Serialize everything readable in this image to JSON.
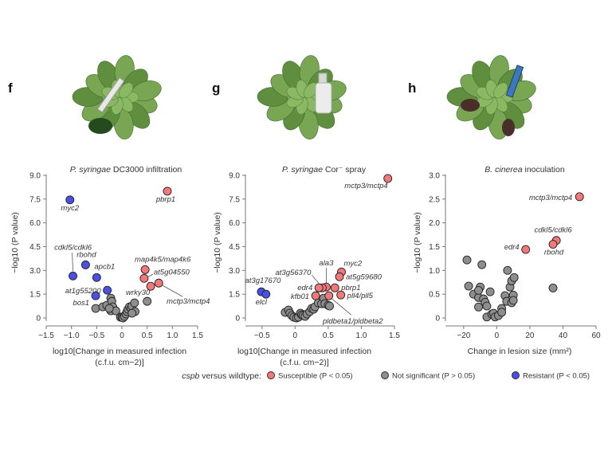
{
  "colors": {
    "susceptible": "#f2787a",
    "not_significant": "#8e8e8e",
    "resistant": "#4b4fe3",
    "outline": "#222222"
  },
  "legend": {
    "prefix_italic": "cspb",
    "prefix_rest": " versus wildtype:",
    "items": [
      {
        "key": "susceptible",
        "label": "Susceptible (P < 0.05)"
      },
      {
        "key": "not_significant",
        "label": "Not significant (P > 0.05)"
      },
      {
        "key": "resistant",
        "label": "Resistant (P < 0.05)"
      }
    ]
  },
  "chart_data": [
    {
      "panel": "f",
      "type": "scatter",
      "title_italic": "P. syringae",
      "title_rest": " DC3000 infiltration",
      "xlabel_line1": "log10[Change in measured infection",
      "xlabel_line2": "(c.f.u. cm−2)]",
      "ylabel": "−log10 (P value)",
      "xlim": [
        -1.5,
        1.5
      ],
      "ylim": [
        0,
        9
      ],
      "xticks": [
        "-1.5",
        "-1.0",
        "-0.5",
        "0",
        "0.5",
        "1.0",
        "1.5"
      ],
      "yticks": [
        "0",
        "1.5",
        "3.0",
        "4.5",
        "6.0",
        "7.5",
        "9.0"
      ],
      "points": [
        {
          "x": -1.03,
          "y": 7.45,
          "cls": "resistant",
          "label": "myc2"
        },
        {
          "x": -0.97,
          "y": 2.65,
          "cls": "resistant",
          "label": "cdkl5/cdkl6"
        },
        {
          "x": -0.72,
          "y": 3.35,
          "cls": "resistant",
          "label": "rbohd"
        },
        {
          "x": -0.5,
          "y": 2.55,
          "cls": "resistant",
          "label": "apcb1"
        },
        {
          "x": -0.29,
          "y": 1.75,
          "cls": "resistant",
          "label": "at1g55200"
        },
        {
          "x": -0.52,
          "y": 1.4,
          "cls": "resistant",
          "label": "bos1"
        },
        {
          "x": 0.9,
          "y": 8.0,
          "cls": "susceptible",
          "label": "pbrp1"
        },
        {
          "x": 0.46,
          "y": 3.05,
          "cls": "susceptible",
          "label": "map4k5/map4k6"
        },
        {
          "x": 0.44,
          "y": 2.5,
          "cls": "susceptible",
          "label": "at5g04550"
        },
        {
          "x": 0.57,
          "y": 2.0,
          "cls": "susceptible",
          "label": "wrky30"
        },
        {
          "x": 0.73,
          "y": 2.2,
          "cls": "susceptible",
          "label": "mctp3/mctp4"
        },
        {
          "x": -0.52,
          "y": 0.6,
          "cls": "not_significant"
        },
        {
          "x": -0.38,
          "y": 0.7,
          "cls": "not_significant"
        },
        {
          "x": -0.3,
          "y": 0.8,
          "cls": "not_significant"
        },
        {
          "x": -0.22,
          "y": 1.25,
          "cls": "not_significant"
        },
        {
          "x": -0.2,
          "y": 1.05,
          "cls": "not_significant"
        },
        {
          "x": -0.18,
          "y": 0.7,
          "cls": "not_significant"
        },
        {
          "x": -0.22,
          "y": 0.45,
          "cls": "not_significant"
        },
        {
          "x": -0.12,
          "y": 0.45,
          "cls": "not_significant"
        },
        {
          "x": -0.25,
          "y": 0.6,
          "cls": "not_significant"
        },
        {
          "x": -0.03,
          "y": 0.05,
          "cls": "not_significant"
        },
        {
          "x": 0.0,
          "y": 0.05,
          "cls": "not_significant"
        },
        {
          "x": 0.02,
          "y": 0.0,
          "cls": "not_significant"
        },
        {
          "x": 0.05,
          "y": 0.1,
          "cls": "not_significant"
        },
        {
          "x": 0.08,
          "y": 0.25,
          "cls": "not_significant"
        },
        {
          "x": 0.1,
          "y": 0.4,
          "cls": "not_significant"
        },
        {
          "x": 0.12,
          "y": 0.55,
          "cls": "not_significant"
        },
        {
          "x": 0.15,
          "y": 0.7,
          "cls": "not_significant"
        },
        {
          "x": 0.18,
          "y": 0.6,
          "cls": "not_significant"
        },
        {
          "x": 0.2,
          "y": 0.75,
          "cls": "not_significant"
        },
        {
          "x": 0.25,
          "y": 0.95,
          "cls": "not_significant"
        },
        {
          "x": 0.26,
          "y": 0.4,
          "cls": "not_significant"
        },
        {
          "x": 0.2,
          "y": 0.3,
          "cls": "not_significant"
        },
        {
          "x": 0.5,
          "y": 1.05,
          "cls": "not_significant"
        }
      ]
    },
    {
      "panel": "g",
      "type": "scatter",
      "title_italic": "P. syringae",
      "title_rest": " Cor⁻ spray",
      "xlabel_line1": "log10[Change in measured infection",
      "xlabel_line2": "(c.f.u. cm−2)]",
      "ylabel": "−log10 (P value)",
      "xlim": [
        -0.75,
        1.5
      ],
      "ylim": [
        0,
        9
      ],
      "xticks": [
        "-0.5",
        "0",
        "0.5",
        "1.0",
        "1.5"
      ],
      "yticks": [
        "0",
        "1.5",
        "3.0",
        "4.5",
        "6.0",
        "7.5",
        "9.0"
      ],
      "points": [
        {
          "x": 1.4,
          "y": 8.8,
          "cls": "susceptible",
          "label": "mctp3/mctp4"
        },
        {
          "x": 0.7,
          "y": 2.9,
          "cls": "susceptible",
          "label": "myc2"
        },
        {
          "x": 0.67,
          "y": 2.6,
          "cls": "susceptible",
          "label": "at5g59680"
        },
        {
          "x": 0.6,
          "y": 1.9,
          "cls": "susceptible",
          "label": "pbrp1"
        },
        {
          "x": 0.47,
          "y": 1.95,
          "cls": "susceptible",
          "label": "ala3"
        },
        {
          "x": 0.41,
          "y": 1.9,
          "cls": "susceptible",
          "label": "at3g56370"
        },
        {
          "x": 0.36,
          "y": 1.9,
          "cls": "susceptible",
          "label": "edr4"
        },
        {
          "x": 0.31,
          "y": 1.4,
          "cls": "susceptible",
          "label": "kfb01"
        },
        {
          "x": 0.51,
          "y": 1.4,
          "cls": "susceptible",
          "label": "pldbeta1/pldbeta2"
        },
        {
          "x": 0.69,
          "y": 1.45,
          "cls": "susceptible",
          "label": "pll4/pll5"
        },
        {
          "x": -0.51,
          "y": 1.65,
          "cls": "resistant",
          "label": "at3g17670"
        },
        {
          "x": -0.44,
          "y": 1.5,
          "cls": "resistant",
          "label": "elcl"
        },
        {
          "x": -0.15,
          "y": 0.35,
          "cls": "not_significant"
        },
        {
          "x": -0.1,
          "y": 0.5,
          "cls": "not_significant"
        },
        {
          "x": -0.08,
          "y": 0.3,
          "cls": "not_significant"
        },
        {
          "x": -0.05,
          "y": 0.15,
          "cls": "not_significant"
        },
        {
          "x": -0.02,
          "y": 0.05,
          "cls": "not_significant"
        },
        {
          "x": 0.02,
          "y": 0.0,
          "cls": "not_significant"
        },
        {
          "x": 0.05,
          "y": 0.05,
          "cls": "not_significant"
        },
        {
          "x": 0.08,
          "y": 0.3,
          "cls": "not_significant"
        },
        {
          "x": 0.1,
          "y": 0.2,
          "cls": "not_significant"
        },
        {
          "x": 0.12,
          "y": 0.15,
          "cls": "not_significant"
        },
        {
          "x": 0.15,
          "y": 0.1,
          "cls": "not_significant"
        },
        {
          "x": 0.18,
          "y": 0.25,
          "cls": "not_significant"
        },
        {
          "x": 0.22,
          "y": 0.4,
          "cls": "not_significant"
        },
        {
          "x": 0.25,
          "y": 0.6,
          "cls": "not_significant"
        },
        {
          "x": 0.28,
          "y": 0.55,
          "cls": "not_significant"
        },
        {
          "x": 0.3,
          "y": 0.7,
          "cls": "not_significant"
        },
        {
          "x": 0.35,
          "y": 0.95,
          "cls": "not_significant"
        },
        {
          "x": 0.4,
          "y": 0.9,
          "cls": "not_significant"
        },
        {
          "x": 0.43,
          "y": 1.25,
          "cls": "not_significant"
        },
        {
          "x": 0.45,
          "y": 0.9,
          "cls": "not_significant"
        },
        {
          "x": 0.5,
          "y": 0.8,
          "cls": "not_significant"
        },
        {
          "x": 0.52,
          "y": 0.75,
          "cls": "not_significant"
        }
      ]
    },
    {
      "panel": "h",
      "type": "scatter",
      "title_italic": "B. cinerea",
      "title_rest": " inoculation",
      "xlabel_line1": "Change in lesion size (mm²)",
      "xlabel_line2": "",
      "ylabel": "−log10 (P value)",
      "xlim": [
        -30,
        60
      ],
      "ylim": [
        0,
        3
      ],
      "xticks": [
        "-20",
        "0",
        "20",
        "40",
        "60"
      ],
      "yticks": [
        "0",
        "0.5",
        "1.0",
        "1.5",
        "2.0",
        "2.5",
        "3.0"
      ],
      "points": [
        {
          "x": 50,
          "y": 2.55,
          "cls": "susceptible",
          "label": "mctp3/mctp4"
        },
        {
          "x": 36,
          "y": 1.63,
          "cls": "susceptible",
          "label": "cdkl5/cdkl6"
        },
        {
          "x": 34,
          "y": 1.55,
          "cls": "susceptible",
          "label": "rbohd"
        },
        {
          "x": 17.5,
          "y": 1.44,
          "cls": "susceptible",
          "label": "edr4"
        },
        {
          "x": -18,
          "y": 1.22,
          "cls": "not_significant"
        },
        {
          "x": -9,
          "y": 1.12,
          "cls": "not_significant"
        },
        {
          "x": -17,
          "y": 0.67,
          "cls": "not_significant"
        },
        {
          "x": -14,
          "y": 0.5,
          "cls": "not_significant"
        },
        {
          "x": -11,
          "y": 0.43,
          "cls": "not_significant"
        },
        {
          "x": -10,
          "y": 0.65,
          "cls": "not_significant"
        },
        {
          "x": -11,
          "y": 0.58,
          "cls": "not_significant"
        },
        {
          "x": -11,
          "y": 0.23,
          "cls": "not_significant"
        },
        {
          "x": -8,
          "y": 0.4,
          "cls": "not_significant"
        },
        {
          "x": -7,
          "y": 0.33,
          "cls": "not_significant"
        },
        {
          "x": -6,
          "y": 0.25,
          "cls": "not_significant"
        },
        {
          "x": -4,
          "y": 0.55,
          "cls": "not_significant"
        },
        {
          "x": -6,
          "y": 0.02,
          "cls": "not_significant"
        },
        {
          "x": -3,
          "y": 0.08,
          "cls": "not_significant"
        },
        {
          "x": -2,
          "y": 0.1,
          "cls": "not_significant"
        },
        {
          "x": -1,
          "y": 0.02,
          "cls": "not_significant"
        },
        {
          "x": 1,
          "y": 0.05,
          "cls": "not_significant"
        },
        {
          "x": 3,
          "y": 0.2,
          "cls": "not_significant"
        },
        {
          "x": 3,
          "y": 0.12,
          "cls": "not_significant"
        },
        {
          "x": 5,
          "y": 0.47,
          "cls": "not_significant"
        },
        {
          "x": 6,
          "y": 0.35,
          "cls": "not_significant"
        },
        {
          "x": 6.5,
          "y": 1.0,
          "cls": "not_significant"
        },
        {
          "x": 8,
          "y": 0.65,
          "cls": "not_significant"
        },
        {
          "x": 9,
          "y": 0.78,
          "cls": "not_significant"
        },
        {
          "x": 10.5,
          "y": 0.85,
          "cls": "not_significant"
        },
        {
          "x": 9,
          "y": 0.32,
          "cls": "not_significant"
        },
        {
          "x": 10,
          "y": 0.48,
          "cls": "not_significant"
        },
        {
          "x": 10,
          "y": 0.37,
          "cls": "not_significant"
        },
        {
          "x": 34,
          "y": 0.63,
          "cls": "not_significant"
        }
      ]
    }
  ]
}
